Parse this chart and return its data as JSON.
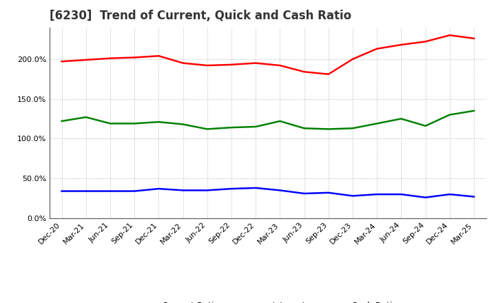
{
  "title": "[6230]  Trend of Current, Quick and Cash Ratio",
  "x_labels": [
    "Dec-20",
    "Mar-21",
    "Jun-21",
    "Sep-21",
    "Dec-21",
    "Mar-22",
    "Jun-22",
    "Sep-22",
    "Dec-22",
    "Mar-23",
    "Jun-23",
    "Sep-23",
    "Dec-23",
    "Mar-24",
    "Jun-24",
    "Sep-24",
    "Dec-24",
    "Mar-25"
  ],
  "current_ratio": [
    197,
    199,
    201,
    202,
    204,
    195,
    192,
    193,
    195,
    192,
    184,
    181,
    200,
    213,
    218,
    222,
    230,
    226
  ],
  "quick_ratio": [
    122,
    127,
    119,
    119,
    121,
    118,
    112,
    114,
    115,
    122,
    113,
    112,
    113,
    119,
    125,
    116,
    130,
    135
  ],
  "cash_ratio": [
    34,
    34,
    34,
    34,
    37,
    35,
    35,
    37,
    38,
    35,
    31,
    32,
    28,
    30,
    30,
    26,
    30,
    27
  ],
  "current_color": "#FF0000",
  "quick_color": "#008000",
  "cash_color": "#0000FF",
  "bg_color": "#FFFFFF",
  "plot_bg_color": "#FFFFFF",
  "grid_color": "#BBBBBB",
  "ylim": [
    0,
    240
  ],
  "yticks": [
    0,
    50,
    100,
    150,
    200
  ],
  "legend_labels": [
    "Current Ratio",
    "Quick Ratio",
    "Cash Ratio"
  ],
  "title_fontsize": 12,
  "tick_fontsize": 8,
  "legend_fontsize": 9,
  "linewidth": 1.8
}
